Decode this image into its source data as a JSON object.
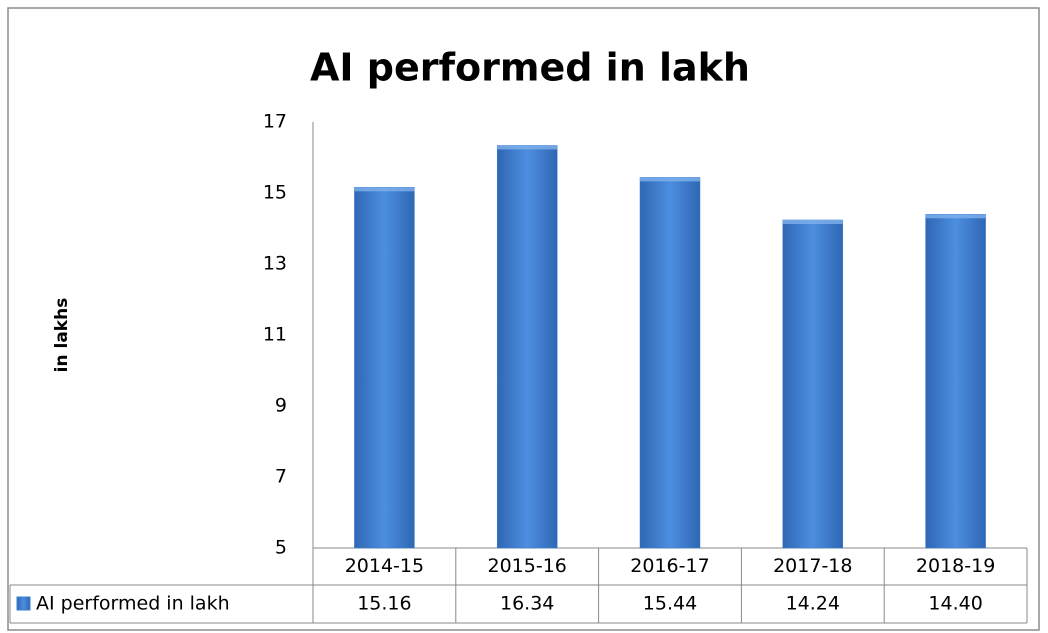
{
  "chart_data": {
    "type": "bar",
    "title": "AI performed in lakh",
    "y_label": "in lakhs",
    "categories": [
      "2014-15",
      "2015-16",
      "2016-17",
      "2017-18",
      "2018-19"
    ],
    "series": [
      {
        "name": "AI performed in lakh",
        "color": "#3d7fd0",
        "values": [
          15.16,
          16.34,
          15.44,
          14.24,
          14.4
        ],
        "value_labels": [
          "15.16",
          "16.34",
          "15.44",
          "14.24",
          "14.40"
        ]
      }
    ],
    "ylim": [
      5,
      17
    ],
    "yticks": [
      5,
      7,
      9,
      11,
      13,
      15,
      17
    ],
    "grid": false
  }
}
